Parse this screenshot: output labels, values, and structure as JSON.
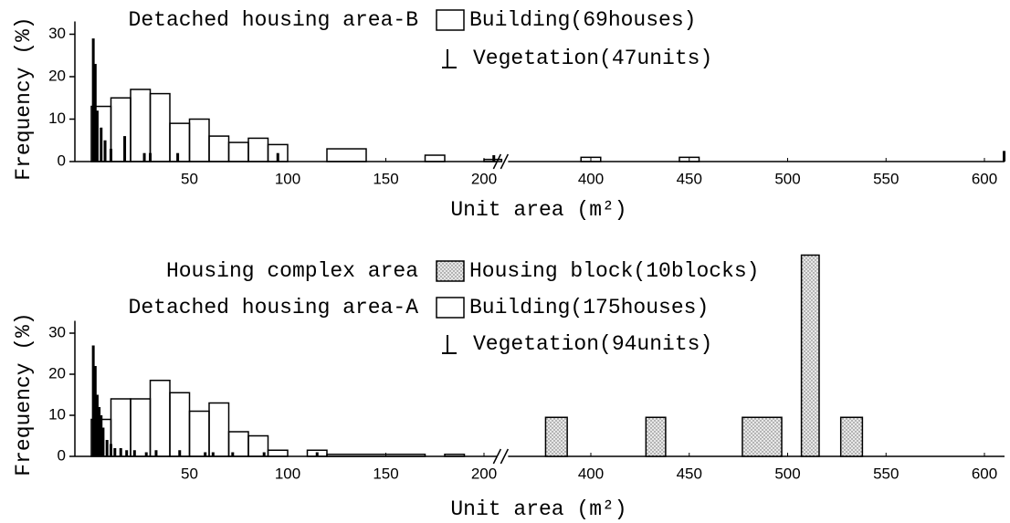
{
  "chart_data": [
    {
      "type": "histogram",
      "ylabel": "Frequency (%)",
      "xlabel": "Unit area (m²)",
      "ylim": [
        0,
        33
      ],
      "yticks": [
        0,
        10,
        20,
        30
      ],
      "xlim": [
        0,
        615
      ],
      "xticks": [
        50,
        100,
        150,
        200,
        400,
        450,
        500,
        550,
        600
      ],
      "axis_break": [
        209,
        356
      ],
      "series": [
        {
          "name": "Building(69houses)",
          "area": "Detached housing area-B",
          "style": "outline",
          "color": "#000000",
          "bins": [
            0,
            10,
            20,
            30,
            40,
            50,
            60,
            70,
            80,
            90,
            100,
            120,
            140,
            170,
            180,
            200,
            210,
            395,
            405,
            445,
            455
          ],
          "values": [
            13,
            15,
            17,
            16,
            9,
            10,
            6,
            4.5,
            5.5,
            4,
            0,
            3,
            0,
            1.5,
            0,
            0.5,
            0,
            1,
            0,
            1
          ]
        },
        {
          "name": "Vegetation(47units)",
          "style": "spike",
          "color": "#000000",
          "x": [
            1,
            2,
            3,
            5,
            7,
            10,
            17,
            27,
            30,
            44,
            95,
            205,
            610
          ],
          "values": [
            29,
            23,
            12,
            8,
            5,
            3,
            6,
            2,
            2,
            2,
            2,
            1.5,
            2.5
          ]
        }
      ]
    },
    {
      "type": "histogram",
      "ylabel": "Frequency (%)",
      "xlabel": "Unit area (m²)",
      "ylim": [
        0,
        33
      ],
      "yticks": [
        0,
        10,
        20,
        30
      ],
      "xlim": [
        0,
        615
      ],
      "xticks": [
        50,
        100,
        150,
        200,
        400,
        450,
        500,
        550,
        600
      ],
      "axis_break": [
        209,
        356
      ],
      "series": [
        {
          "name": "Housing block(10blocks)",
          "area": "Housing complex area",
          "style": "dotted",
          "color": "#000000",
          "bins": [
            377,
            388,
            428,
            438,
            477,
            497,
            507,
            516,
            527,
            538
          ],
          "values": [
            9.5,
            0,
            9.5,
            0,
            9.5,
            0,
            49,
            0,
            9.5
          ]
        },
        {
          "name": "Building(175houses)",
          "area": "Detached housing area-A",
          "style": "outline",
          "color": "#000000",
          "bins": [
            0,
            10,
            20,
            30,
            40,
            50,
            60,
            70,
            80,
            90,
            100,
            110,
            120,
            170,
            180,
            190,
            200
          ],
          "values": [
            9,
            14,
            14,
            18.5,
            15.5,
            11,
            13,
            6,
            5,
            1.5,
            0,
            1.5,
            0.5,
            0,
            0.5,
            0
          ]
        },
        {
          "name": "Vegetation(94units)",
          "style": "spike",
          "color": "#000000",
          "x": [
            1,
            2,
            3,
            4,
            5,
            6,
            8,
            10,
            12,
            15,
            18,
            22,
            28,
            33,
            45,
            58,
            62,
            72,
            88,
            115
          ],
          "values": [
            27,
            22,
            15,
            12,
            10,
            7,
            4,
            3,
            2,
            2,
            1.5,
            1.5,
            1,
            1.5,
            1.5,
            1,
            1,
            1,
            1,
            1
          ]
        }
      ]
    }
  ]
}
